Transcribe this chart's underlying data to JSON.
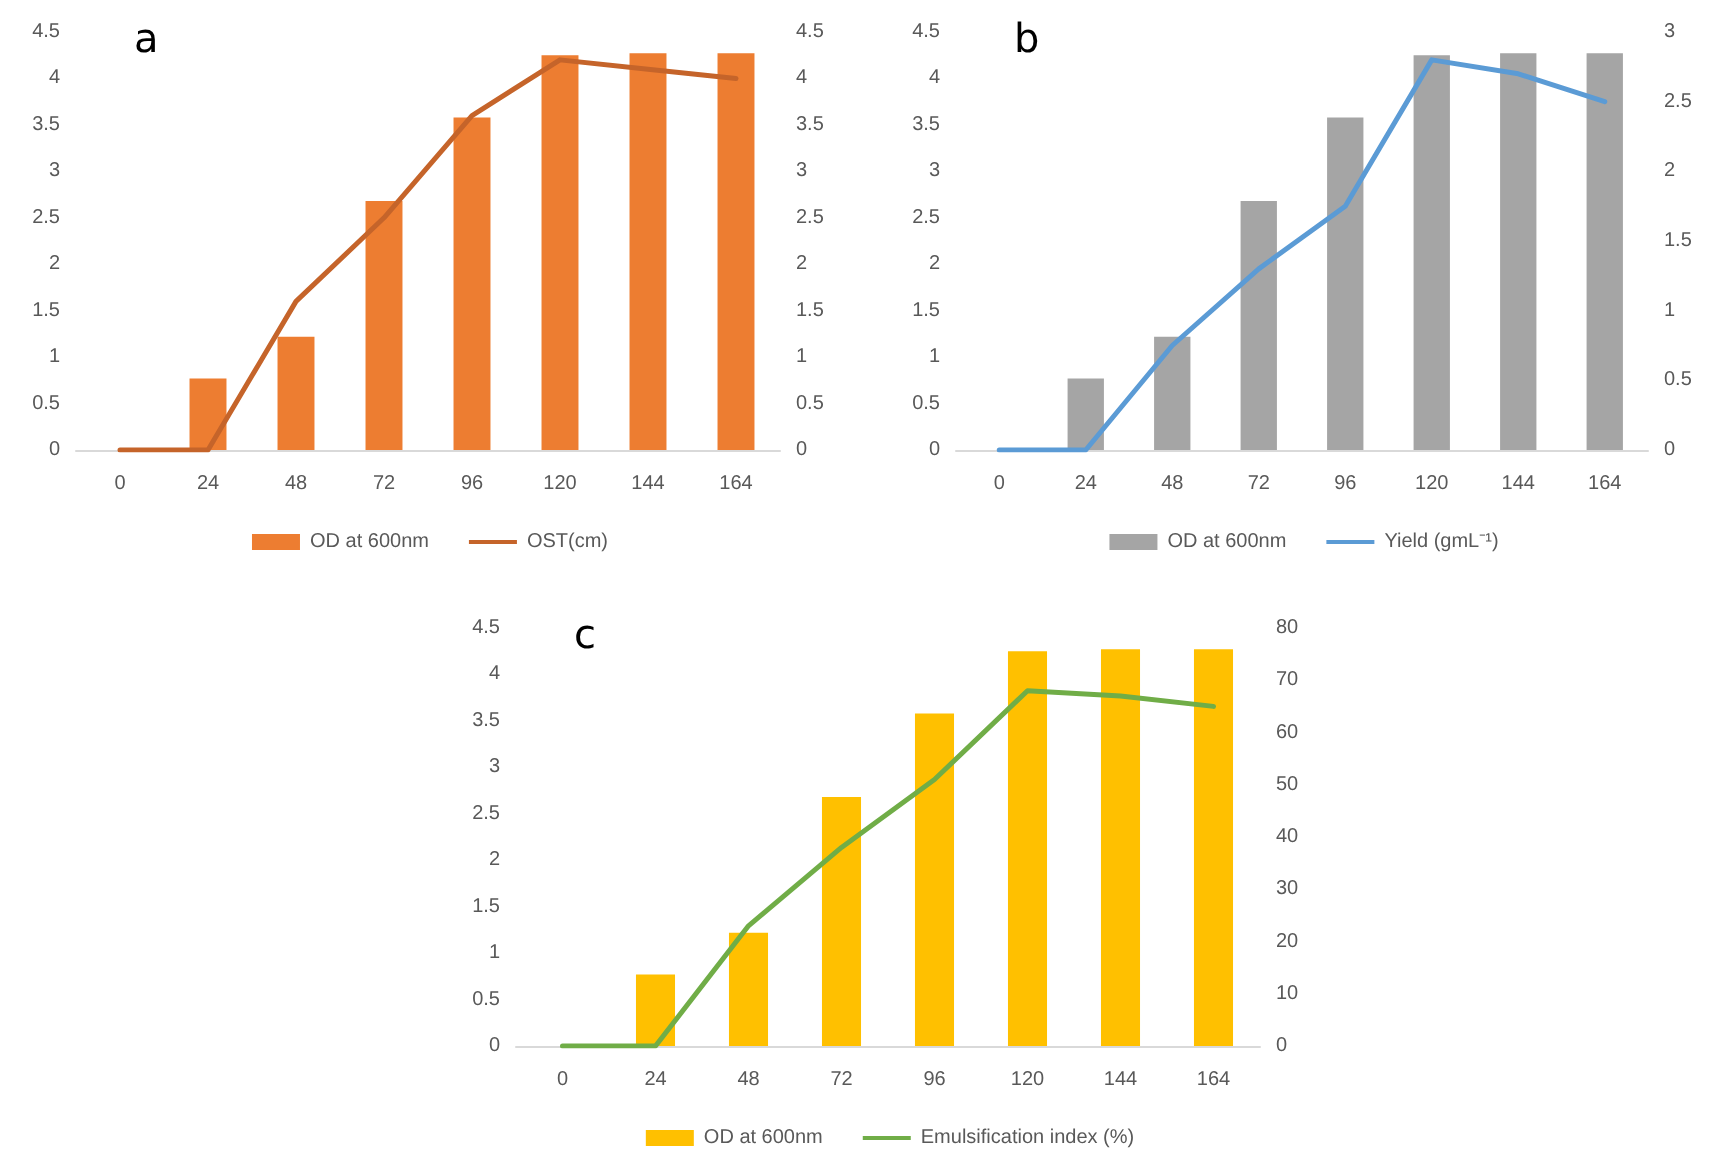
{
  "chart_data": [
    {
      "type": "bar",
      "title": "a",
      "categories": [
        "0",
        "24",
        "48",
        "72",
        "96",
        "120",
        "144",
        "164"
      ],
      "ylim": [
        0,
        4.5
      ],
      "yticks": [
        0,
        0.5,
        1,
        1.5,
        2,
        2.5,
        3,
        3.5,
        4,
        4.5
      ],
      "y2lim": [
        0,
        4.5
      ],
      "y2ticks": [
        0,
        0.5,
        1,
        1.5,
        2,
        2.5,
        3,
        3.5,
        4,
        4.5
      ],
      "grid": false,
      "legend": "bottom",
      "marker": "none",
      "series": [
        {
          "name": "OD at 600nm",
          "color": "#ed7d31",
          "values": [
            0,
            0.77,
            1.22,
            2.68,
            3.58,
            4.25,
            4.27,
            4.27
          ]
        },
        {
          "name": "OST(cm)",
          "type": "line",
          "axis": "y2",
          "color": "#c5642a",
          "values": [
            0,
            0,
            1.6,
            2.5,
            3.6,
            4.2,
            4.1,
            4.0
          ]
        }
      ]
    },
    {
      "type": "bar",
      "title": "b",
      "categories": [
        "0",
        "24",
        "48",
        "72",
        "96",
        "120",
        "144",
        "164"
      ],
      "ylim": [
        0,
        4.5
      ],
      "yticks": [
        0,
        0.5,
        1,
        1.5,
        2,
        2.5,
        3,
        3.5,
        4,
        4.5
      ],
      "y2lim": [
        0,
        3
      ],
      "y2ticks": [
        0,
        0.5,
        1,
        1.5,
        2,
        2.5,
        3
      ],
      "grid": false,
      "legend": "bottom",
      "marker": "none",
      "series": [
        {
          "name": "OD at 600nm",
          "color": "#a5a5a5",
          "values": [
            0,
            0.77,
            1.22,
            2.68,
            3.58,
            4.25,
            4.27,
            4.27
          ]
        },
        {
          "name": "Yield (gmL⁻¹)",
          "type": "line",
          "axis": "y2",
          "color": "#5b9bd5",
          "values": [
            0,
            0,
            0.75,
            1.3,
            1.75,
            2.8,
            2.7,
            2.5
          ]
        }
      ]
    },
    {
      "type": "bar",
      "title": "c",
      "categories": [
        "0",
        "24",
        "48",
        "72",
        "96",
        "120",
        "144",
        "164"
      ],
      "ylim": [
        0,
        4.5
      ],
      "yticks": [
        0,
        0.5,
        1,
        1.5,
        2,
        2.5,
        3,
        3.5,
        4,
        4.5
      ],
      "y2lim": [
        0,
        80
      ],
      "y2ticks": [
        0,
        10,
        20,
        30,
        40,
        50,
        60,
        70,
        80
      ],
      "grid": false,
      "legend": "bottom",
      "marker": "none",
      "series": [
        {
          "name": "OD at 600nm",
          "color": "#ffc000",
          "values": [
            0,
            0.77,
            1.22,
            2.68,
            3.58,
            4.25,
            4.27,
            4.27
          ]
        },
        {
          "name": "Emulsification index (%)",
          "type": "line",
          "axis": "y2",
          "color": "#70ad47",
          "values": [
            0,
            0,
            23,
            38,
            51,
            68,
            67,
            65
          ]
        }
      ]
    }
  ]
}
